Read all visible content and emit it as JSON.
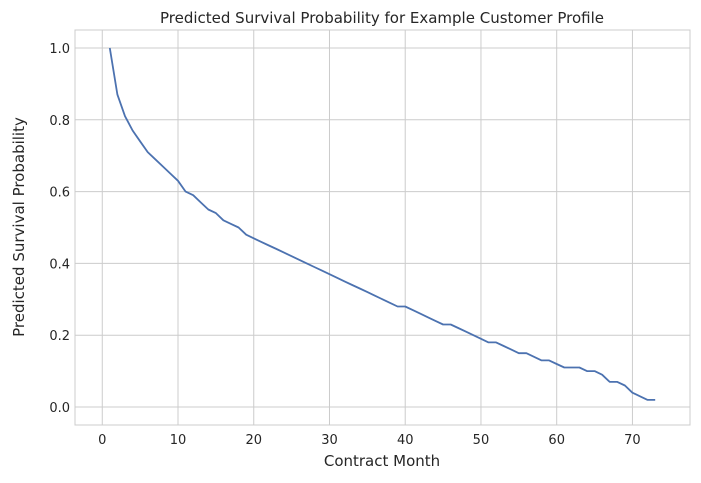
{
  "chart_data": {
    "type": "line",
    "title": "Predicted Survival Probability for Example Customer Profile",
    "xlabel": "Contract Month",
    "ylabel": "Predicted Survival Probability",
    "xlim": [
      -3.6,
      77.6
    ],
    "ylim": [
      -0.05,
      1.05
    ],
    "xticks": [
      0,
      10,
      20,
      30,
      40,
      50,
      60,
      70
    ],
    "xtick_labels": [
      "0",
      "10",
      "20",
      "30",
      "40",
      "50",
      "60",
      "70"
    ],
    "yticks": [
      0.0,
      0.2,
      0.4,
      0.6,
      0.8,
      1.0
    ],
    "ytick_labels": [
      "0.0",
      "0.2",
      "0.4",
      "0.6",
      "0.8",
      "1.0"
    ],
    "grid": true,
    "line_color": "#4c72b0",
    "series": [
      {
        "name": "survival",
        "x": [
          1,
          2,
          3,
          4,
          5,
          6,
          7,
          8,
          9,
          10,
          11,
          12,
          13,
          14,
          15,
          16,
          17,
          18,
          19,
          20,
          21,
          22,
          23,
          24,
          25,
          26,
          27,
          28,
          29,
          30,
          31,
          32,
          33,
          34,
          35,
          36,
          37,
          38,
          39,
          40,
          41,
          42,
          43,
          44,
          45,
          46,
          47,
          48,
          49,
          50,
          51,
          52,
          53,
          54,
          55,
          56,
          57,
          58,
          59,
          60,
          61,
          62,
          63,
          64,
          65,
          66,
          67,
          68,
          69,
          70,
          71,
          72,
          73
        ],
        "values": [
          1.0,
          0.87,
          0.81,
          0.77,
          0.74,
          0.71,
          0.69,
          0.67,
          0.65,
          0.63,
          0.6,
          0.59,
          0.57,
          0.55,
          0.54,
          0.52,
          0.51,
          0.5,
          0.48,
          0.47,
          0.46,
          0.45,
          0.44,
          0.43,
          0.42,
          0.41,
          0.4,
          0.39,
          0.38,
          0.37,
          0.36,
          0.35,
          0.34,
          0.33,
          0.32,
          0.31,
          0.3,
          0.29,
          0.28,
          0.28,
          0.27,
          0.26,
          0.25,
          0.24,
          0.23,
          0.23,
          0.22,
          0.21,
          0.2,
          0.19,
          0.18,
          0.18,
          0.17,
          0.16,
          0.15,
          0.15,
          0.14,
          0.13,
          0.13,
          0.12,
          0.11,
          0.11,
          0.11,
          0.1,
          0.1,
          0.09,
          0.07,
          0.07,
          0.06,
          0.04,
          0.03,
          0.02,
          0.02
        ]
      }
    ]
  }
}
